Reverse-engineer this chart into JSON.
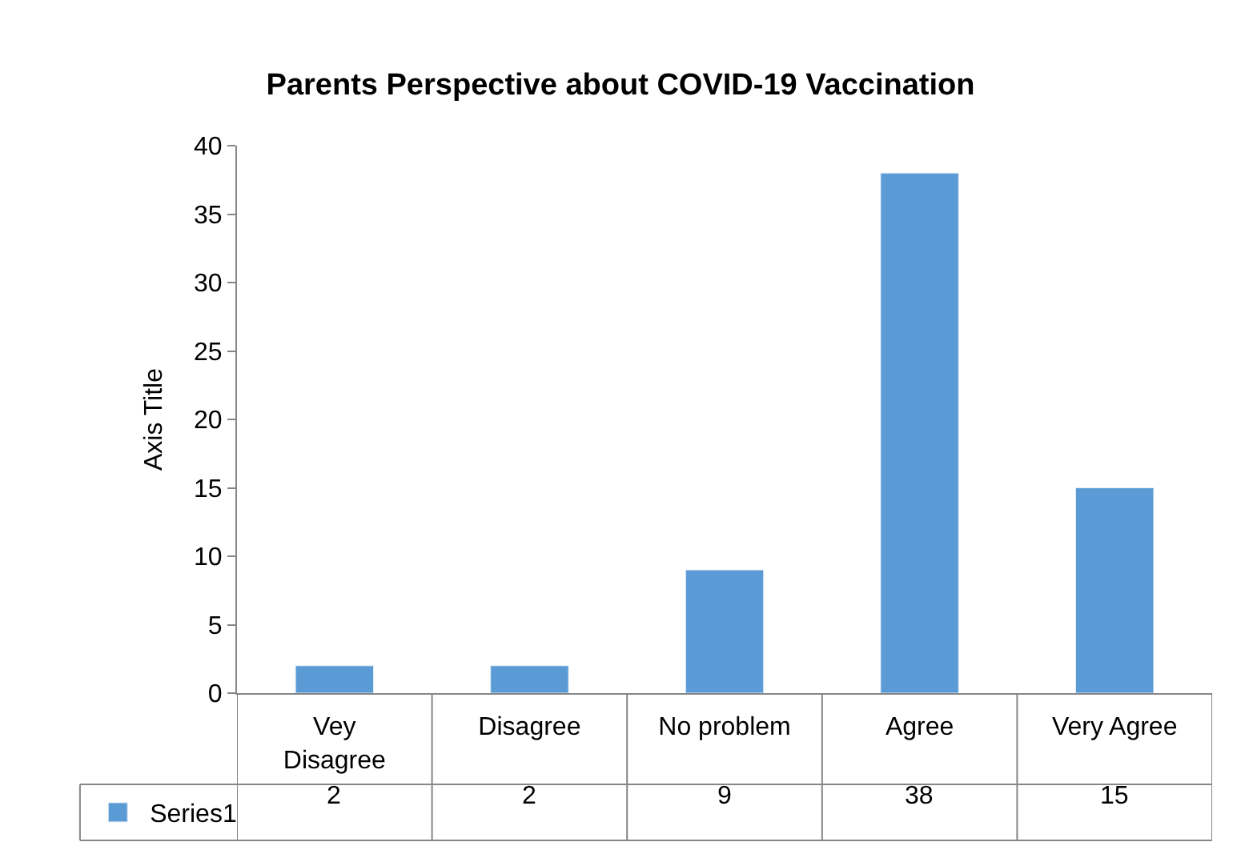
{
  "chart_data": {
    "type": "bar",
    "title": "Parents Perspective about COVID-19 Vaccination",
    "ylabel": "Axis Title",
    "categories": [
      "Vey Disagree",
      "Disagree",
      "No problem",
      "Agree",
      "Very Agree"
    ],
    "series": [
      {
        "name": "Series1",
        "color": "#5b9bd5",
        "values": [
          2,
          2,
          9,
          38,
          15
        ]
      }
    ],
    "ylim": [
      0,
      40
    ],
    "yticks": [
      0,
      5,
      10,
      15,
      20,
      25,
      30,
      35,
      40
    ],
    "grid": false,
    "legend": "bottom",
    "data_labels": true
  }
}
